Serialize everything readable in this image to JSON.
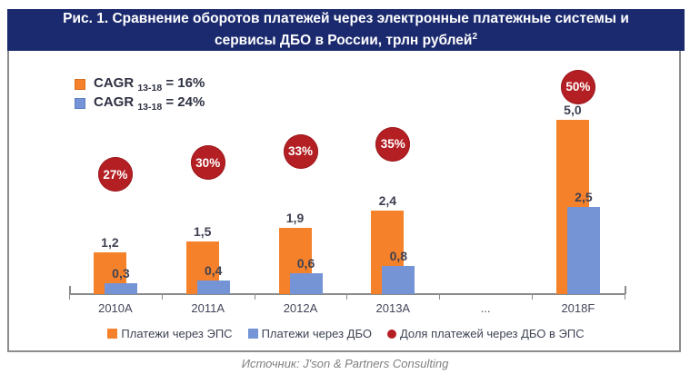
{
  "header": {
    "line1": "Рис. 1. Сравнение оборотов платежей через электронные платежные системы и",
    "line2": "сервисы ДБО в России, трлн рублей",
    "superscript": "2"
  },
  "cagr_legend": [
    {
      "label": "CAGR",
      "sub": "13-18",
      "value": "= 16%",
      "color": "#F5822B"
    },
    {
      "label": "CAGR",
      "sub": "13-18",
      "value": "= 24%",
      "color": "#7494D6"
    }
  ],
  "chart_data": {
    "type": "bar",
    "categories": [
      "2010A",
      "2011A",
      "2012A",
      "2013A",
      "...",
      "2018F"
    ],
    "series": [
      {
        "name": "Платежи через ЭПС",
        "color": "#F5822B",
        "values": [
          1.2,
          1.5,
          1.9,
          2.4,
          null,
          5.0
        ],
        "labels": [
          "1,2",
          "1,5",
          "1,9",
          "2,4",
          "",
          "5,0"
        ],
        "cagr_13_18": "16%"
      },
      {
        "name": "Платежи через ДБО",
        "color": "#7494D6",
        "values": [
          0.3,
          0.4,
          0.6,
          0.8,
          null,
          2.5
        ],
        "labels": [
          "0,3",
          "0,4",
          "0,6",
          "0,8",
          "",
          "2,5"
        ],
        "cagr_13_18": "24%"
      }
    ],
    "share_series": {
      "name": "Доля платежей через ДБО в ЭПС",
      "color": "#B41F24",
      "marker": "circle",
      "values": [
        27,
        30,
        33,
        35,
        null,
        50
      ],
      "labels": [
        "27%",
        "30%",
        "33%",
        "35%",
        "",
        "50%"
      ]
    },
    "title": "Сравнение оборотов платежей через электронные платежные системы и сервисы ДБО в России",
    "ylabel": "трлн рублей",
    "ylim": [
      0,
      5.5
    ],
    "grid": false,
    "legend_position": "bottom"
  },
  "legend": {
    "items": [
      {
        "label": "Платежи через ЭПС",
        "marker": "square",
        "color": "#F5822B"
      },
      {
        "label": "Платежи через ДБО",
        "marker": "square",
        "color": "#7494D6"
      },
      {
        "label": "Доля платежей через ДБО в ЭПС",
        "marker": "circle",
        "color": "#B41F24"
      }
    ]
  },
  "footer": {
    "source": "Источник: J'son & Partners Consulting"
  },
  "colors": {
    "title_bg": "#1B2A6E",
    "title_text": "#FFFFFF",
    "frame_border": "#8C8C8C",
    "axis": "#8A8A8A",
    "bar_label_text": "#3E4152"
  }
}
